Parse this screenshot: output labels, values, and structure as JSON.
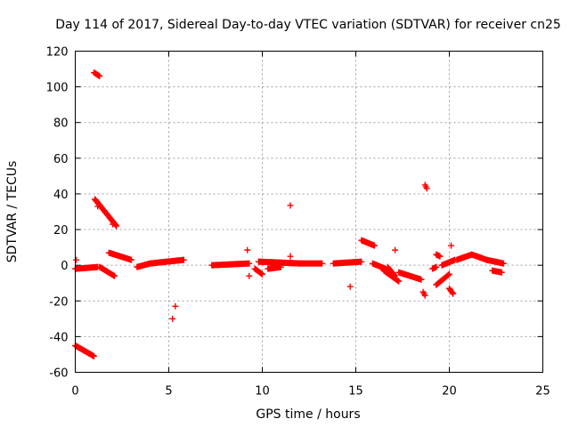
{
  "chart_data": {
    "type": "scatter",
    "title": "Day 114 of 2017, Sidereal Day-to-day VTEC variation (SDTVAR) for receiver cn25",
    "xlabel": "GPS time / hours",
    "ylabel": "SDTVAR / TECUs",
    "xlim": [
      0,
      25
    ],
    "ylim": [
      -60,
      120
    ],
    "xticks": [
      0,
      5,
      10,
      15,
      20,
      25
    ],
    "yticks": [
      -60,
      -40,
      -20,
      0,
      20,
      40,
      60,
      80,
      100,
      120
    ],
    "grid": true,
    "marker": "+",
    "color": "#ff0000",
    "segments": [
      {
        "x0": 1.0,
        "x1": 1.3,
        "y0": 108,
        "y1": 106,
        "step": 0.05
      },
      {
        "x0": 1.05,
        "x1": 2.2,
        "y0": 37,
        "y1": 22,
        "step": 0.035
      },
      {
        "x0": 0.0,
        "x1": 1.0,
        "y0": -45,
        "y1": -51,
        "step": 0.04
      },
      {
        "x0": 0.0,
        "x1": 1.2,
        "y0": -2,
        "y1": -1,
        "step": 0.05
      },
      {
        "x0": 1.3,
        "x1": 2.1,
        "y0": -1,
        "y1": -6,
        "step": 0.05
      },
      {
        "x0": 1.8,
        "x1": 3.0,
        "y0": 7,
        "y1": 3,
        "step": 0.05
      },
      {
        "x0": 3.3,
        "x1": 4.0,
        "y0": -1,
        "y1": 1,
        "step": 0.05
      },
      {
        "x0": 4.0,
        "x1": 5.8,
        "y0": 1,
        "y1": 3,
        "step": 0.05
      },
      {
        "x0": 7.3,
        "x1": 9.3,
        "y0": 0,
        "y1": 1,
        "step": 0.05
      },
      {
        "x0": 9.6,
        "x1": 10.0,
        "y0": -2,
        "y1": -5,
        "step": 0.05
      },
      {
        "x0": 9.8,
        "x1": 12.0,
        "y0": 2,
        "y1": 1,
        "step": 0.04
      },
      {
        "x0": 10.3,
        "x1": 11.0,
        "y0": -2,
        "y1": -1,
        "step": 0.05
      },
      {
        "x0": 12.0,
        "x1": 13.2,
        "y0": 1,
        "y1": 1,
        "step": 0.05
      },
      {
        "x0": 13.8,
        "x1": 15.3,
        "y0": 1,
        "y1": 2,
        "step": 0.05
      },
      {
        "x0": 15.3,
        "x1": 16.0,
        "y0": 14,
        "y1": 11,
        "step": 0.05
      },
      {
        "x0": 15.9,
        "x1": 16.6,
        "y0": 1,
        "y1": -2,
        "step": 0.05
      },
      {
        "x0": 16.5,
        "x1": 17.3,
        "y0": -3,
        "y1": -9,
        "step": 0.05
      },
      {
        "x0": 16.7,
        "x1": 17.1,
        "y0": -1,
        "y1": -6,
        "step": 0.05
      },
      {
        "x0": 17.3,
        "x1": 18.5,
        "y0": -4,
        "y1": -8,
        "step": 0.05
      },
      {
        "x0": 18.7,
        "x1": 18.8,
        "y0": 45,
        "y1": 43,
        "step": 0.05
      },
      {
        "x0": 18.6,
        "x1": 18.7,
        "y0": -15,
        "y1": -17,
        "step": 0.05
      },
      {
        "x0": 19.1,
        "x1": 19.3,
        "y0": -2,
        "y1": -1,
        "step": 0.05
      },
      {
        "x0": 19.3,
        "x1": 19.5,
        "y0": 6,
        "y1": 5,
        "step": 0.05
      },
      {
        "x0": 19.3,
        "x1": 20.0,
        "y0": -11,
        "y1": -5,
        "step": 0.05
      },
      {
        "x0": 19.6,
        "x1": 20.3,
        "y0": 0,
        "y1": 3,
        "step": 0.05
      },
      {
        "x0": 20.0,
        "x1": 20.2,
        "y0": -13,
        "y1": -16,
        "step": 0.05
      },
      {
        "x0": 20.4,
        "x1": 21.2,
        "y0": 3,
        "y1": 6,
        "step": 0.05
      },
      {
        "x0": 21.2,
        "x1": 22.0,
        "y0": 6,
        "y1": 3,
        "step": 0.05
      },
      {
        "x0": 22.0,
        "x1": 22.9,
        "y0": 3,
        "y1": 1,
        "step": 0.05
      },
      {
        "x0": 22.3,
        "x1": 22.8,
        "y0": -3,
        "y1": -4,
        "step": 0.05
      }
    ],
    "points": [
      {
        "x": 0.05,
        "y": 3
      },
      {
        "x": 5.2,
        "y": -30
      },
      {
        "x": 5.35,
        "y": -23
      },
      {
        "x": 9.2,
        "y": 8.5
      },
      {
        "x": 9.3,
        "y": -6
      },
      {
        "x": 11.5,
        "y": 33.5
      },
      {
        "x": 11.5,
        "y": 5
      },
      {
        "x": 14.7,
        "y": -12
      },
      {
        "x": 17.1,
        "y": 8.5
      },
      {
        "x": 20.1,
        "y": 11
      },
      {
        "x": 1.2,
        "y": 33
      },
      {
        "x": 2.0,
        "y": 23
      }
    ]
  }
}
